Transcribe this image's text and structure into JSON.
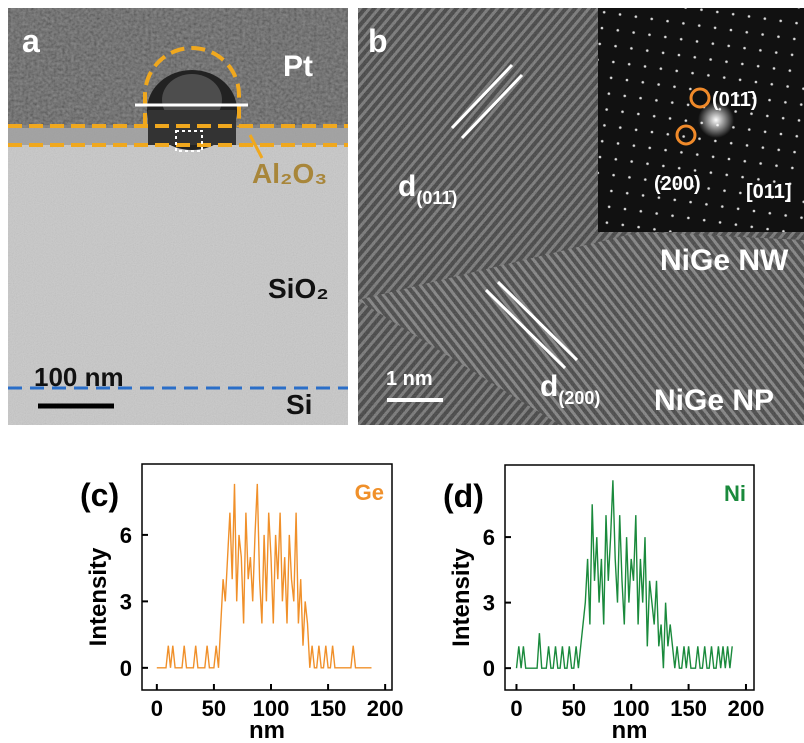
{
  "panel_a": {
    "label": "a",
    "pt": "Pt",
    "al2o3": "Al₂O₃",
    "sio2": "SiO₂",
    "scale": "100 nm",
    "si": "Si"
  },
  "panel_b": {
    "label": "b",
    "d1": "d",
    "d1_index": "(011̄)",
    "d2": "d",
    "d2_index": "(200)",
    "spot1": "(011̄)",
    "spot2": "(200)",
    "zone": "[011]",
    "nw": "NiGe NW",
    "scale": "1 nm",
    "np": "NiGe NP"
  },
  "chart_data": [
    {
      "type": "line",
      "panel": "(c)",
      "xlabel": "nm",
      "ylabel": "Intensity",
      "xlim": [
        -13,
        206
      ],
      "ylim": [
        -1,
        9.2
      ],
      "xticks": [
        0,
        50,
        100,
        150,
        200
      ],
      "yticks": [
        0,
        3,
        6
      ],
      "x": [
        0,
        2,
        4,
        6,
        8,
        10,
        12,
        14,
        16,
        18,
        20,
        22,
        24,
        26,
        28,
        30,
        32,
        34,
        36,
        38,
        40,
        42,
        44,
        46,
        48,
        50,
        52,
        54,
        56,
        58,
        60,
        62,
        64,
        66,
        68,
        70,
        72,
        74,
        76,
        78,
        80,
        82,
        84,
        86,
        88,
        90,
        92,
        94,
        96,
        98,
        100,
        102,
        104,
        106,
        108,
        110,
        112,
        114,
        116,
        118,
        120,
        122,
        124,
        126,
        128,
        130,
        132,
        134,
        136,
        138,
        140,
        142,
        144,
        146,
        148,
        150,
        152,
        154,
        156,
        158,
        160,
        162,
        164,
        166,
        168,
        170,
        172,
        174,
        176,
        178,
        180,
        182,
        184,
        186,
        188
      ],
      "series": [
        {
          "name": "Ge",
          "color": "#f0902a",
          "values": [
            0,
            0,
            0,
            0,
            0,
            1,
            0,
            1,
            0,
            0,
            0,
            0,
            1,
            0,
            0,
            0,
            0,
            1,
            0,
            0,
            0,
            0,
            1,
            0,
            0,
            0,
            1,
            0,
            2,
            4,
            3,
            5,
            7,
            4,
            8.3,
            3,
            6,
            5,
            2,
            7,
            4,
            5,
            3,
            6,
            8.3,
            4,
            2,
            6,
            3,
            7,
            5,
            2,
            6,
            4,
            7,
            3,
            5,
            2,
            6,
            4,
            3,
            7,
            2,
            4,
            1,
            3,
            2,
            0,
            1,
            0,
            0,
            1,
            0,
            0,
            1,
            0,
            0,
            1,
            0,
            0,
            0,
            0,
            0,
            0,
            0,
            0,
            1,
            0,
            0,
            0,
            0,
            0,
            0,
            0,
            0
          ]
        }
      ]
    },
    {
      "type": "line",
      "panel": "(d)",
      "xlabel": "nm",
      "ylabel": "Intensity",
      "xlim": [
        -10,
        207
      ],
      "ylim": [
        -1,
        9.3
      ],
      "xticks": [
        0,
        50,
        100,
        150,
        200
      ],
      "yticks": [
        0,
        3,
        6
      ],
      "x": [
        0,
        2,
        4,
        6,
        8,
        10,
        12,
        14,
        16,
        18,
        20,
        22,
        24,
        26,
        28,
        30,
        32,
        34,
        36,
        38,
        40,
        42,
        44,
        46,
        48,
        50,
        52,
        54,
        56,
        58,
        60,
        62,
        64,
        66,
        68,
        70,
        72,
        74,
        76,
        78,
        80,
        82,
        84,
        86,
        88,
        90,
        92,
        94,
        96,
        98,
        100,
        102,
        104,
        106,
        108,
        110,
        112,
        114,
        116,
        118,
        120,
        122,
        124,
        126,
        128,
        130,
        132,
        134,
        136,
        138,
        140,
        142,
        144,
        146,
        148,
        150,
        152,
        154,
        156,
        158,
        160,
        162,
        164,
        166,
        168,
        170,
        172,
        174,
        176,
        178,
        180,
        182,
        184,
        186,
        188
      ],
      "series": [
        {
          "name": "Ni",
          "color": "#1a8a3c",
          "values": [
            0,
            1,
            0,
            1,
            0,
            0,
            0,
            0,
            0,
            0,
            1.6,
            0,
            0,
            0,
            1,
            0,
            0,
            1,
            0,
            0,
            1,
            0,
            0,
            1,
            0,
            0,
            1,
            0,
            1,
            2,
            3,
            5,
            2,
            7.5,
            4,
            6,
            3,
            5,
            2,
            7,
            4,
            6,
            8.6,
            5,
            3,
            7,
            4,
            2,
            6,
            3,
            5,
            4,
            7,
            2,
            5,
            3,
            6,
            1,
            4,
            3,
            2,
            4,
            1,
            2,
            0,
            3,
            1,
            2,
            1,
            0,
            1,
            0,
            0,
            1,
            0,
            1,
            0,
            0,
            0,
            1,
            0,
            0,
            1,
            0,
            0,
            1,
            0,
            0,
            1,
            0,
            1,
            0,
            1,
            0,
            1
          ]
        }
      ]
    }
  ]
}
